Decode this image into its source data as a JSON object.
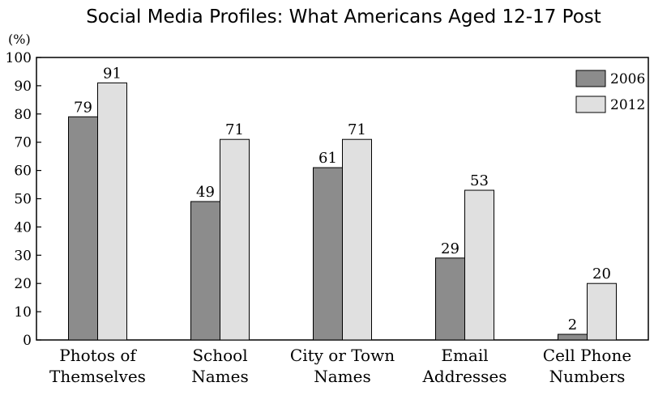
{
  "chart_data": {
    "type": "bar",
    "title": "Social Media Profiles: What Americans Aged 12-17 Post",
    "unit_label": "(%)",
    "ylim": [
      0,
      100
    ],
    "yticks": [
      0,
      10,
      20,
      30,
      40,
      50,
      60,
      70,
      80,
      90,
      100
    ],
    "categories": [
      [
        "Photos of",
        "Themselves"
      ],
      [
        "School",
        "Names"
      ],
      [
        "City or Town",
        "Names"
      ],
      [
        "Email",
        "Addresses"
      ],
      [
        "Cell Phone",
        "Numbers"
      ]
    ],
    "series": [
      {
        "name": "2006",
        "values": [
          79,
          49,
          61,
          29,
          2
        ],
        "color": "#8c8c8c"
      },
      {
        "name": "2012",
        "values": [
          91,
          71,
          71,
          53,
          20
        ],
        "color": "#e0e0e0"
      }
    ],
    "legend_position": "top-right",
    "grid": false
  }
}
